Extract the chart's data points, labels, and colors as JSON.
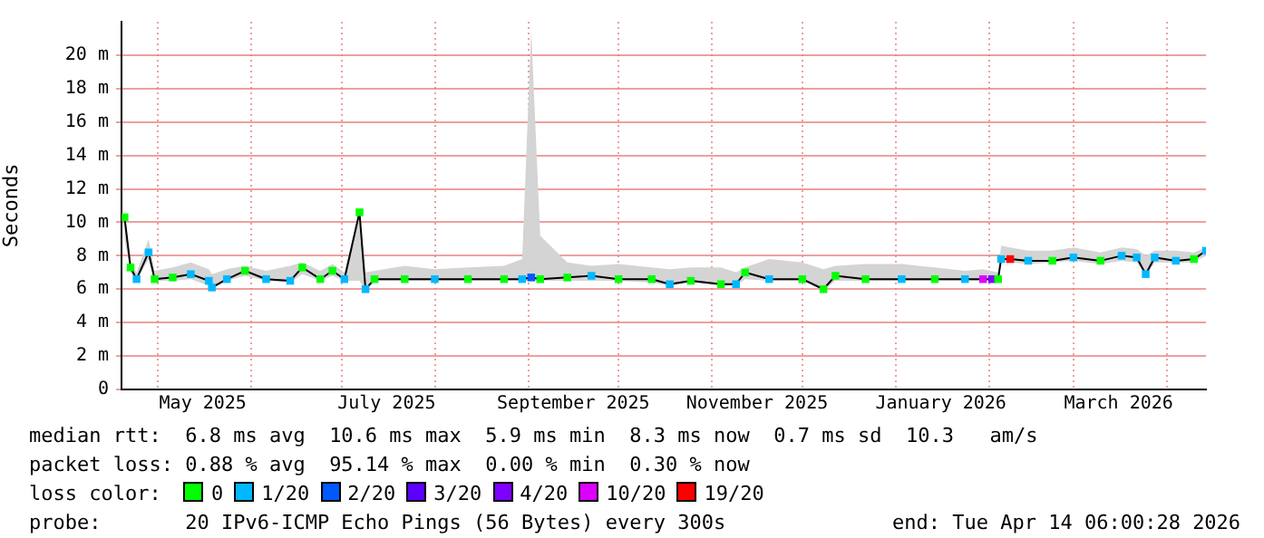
{
  "chart_data": {
    "type": "line",
    "ylabel": "Seconds",
    "legend_title": "loss color:",
    "legend": "bottom",
    "grid": true,
    "marker": "square",
    "xlim": [
      "2025-04-19",
      "2026-04-14"
    ],
    "xticks": [
      {
        "value": "2025-05-01",
        "label": null
      },
      {
        "value": "2025-05-16",
        "label": "May 2025"
      },
      {
        "value": "2025-06-01",
        "label": null
      },
      {
        "value": "2025-07-01",
        "label": null
      },
      {
        "value": "2025-07-16",
        "label": "July 2025"
      },
      {
        "value": "2025-08-01",
        "label": null
      },
      {
        "value": "2025-09-01",
        "label": null
      },
      {
        "value": "2025-09-16",
        "label": "September 2025"
      },
      {
        "value": "2025-10-01",
        "label": null
      },
      {
        "value": "2025-11-01",
        "label": null
      },
      {
        "value": "2025-11-16",
        "label": "November 2025"
      },
      {
        "value": "2025-12-01",
        "label": null
      },
      {
        "value": "2026-01-01",
        "label": null
      },
      {
        "value": "2026-01-16",
        "label": "January 2026"
      },
      {
        "value": "2026-02-01",
        "label": null
      },
      {
        "value": "2026-03-01",
        "label": null
      },
      {
        "value": "2026-03-16",
        "label": "March 2026"
      },
      {
        "value": "2026-04-01",
        "label": null
      }
    ],
    "ylim": [
      0,
      22
    ],
    "yticks": [
      {
        "value": 0,
        "label": "0"
      },
      {
        "value": 2,
        "label": "2 m"
      },
      {
        "value": 4,
        "label": "4 m"
      },
      {
        "value": 6,
        "label": "6 m"
      },
      {
        "value": 8,
        "label": "8 m"
      },
      {
        "value": 10,
        "label": "10 m"
      },
      {
        "value": 12,
        "label": "12 m"
      },
      {
        "value": 14,
        "label": "14 m"
      },
      {
        "value": 16,
        "label": "16 m"
      },
      {
        "value": 18,
        "label": "18 m"
      },
      {
        "value": 20,
        "label": "20 m"
      }
    ],
    "annotations": [
      "median rtt:  6.8 ms avg  10.6 ms max  5.9 ms min  8.3 ms now  0.7 ms sd  10.3   am/s",
      "packet loss: 0.88 % avg  95.14 % max  0.00 % min  0.30 % now",
      "probe:       20 IPv6-ICMP Echo Pings (56 Bytes) every 300s",
      "end: Tue Apr 14 06:00:28 2026"
    ],
    "x": [
      "2025-04-20",
      "2025-04-22",
      "2025-04-24",
      "2025-04-28",
      "2025-04-30",
      "2025-05-06",
      "2025-05-12",
      "2025-05-18",
      "2025-05-19",
      "2025-05-24",
      "2025-05-30",
      "2025-06-06",
      "2025-06-14",
      "2025-06-18",
      "2025-06-24",
      "2025-06-28",
      "2025-07-02",
      "2025-07-07",
      "2025-07-09",
      "2025-07-12",
      "2025-07-22",
      "2025-08-01",
      "2025-08-12",
      "2025-08-24",
      "2025-08-30",
      "2025-09-02",
      "2025-09-05",
      "2025-09-14",
      "2025-09-22",
      "2025-10-01",
      "2025-10-12",
      "2025-10-18",
      "2025-10-25",
      "2025-11-04",
      "2025-11-09",
      "2025-11-12",
      "2025-11-20",
      "2025-12-01",
      "2025-12-08",
      "2025-12-12",
      "2025-12-22",
      "2026-01-03",
      "2026-01-14",
      "2026-01-24",
      "2026-01-30",
      "2026-02-04",
      "2026-02-05",
      "2026-02-08",
      "2026-02-14",
      "2026-02-22",
      "2026-03-01",
      "2026-03-10",
      "2026-03-17",
      "2026-03-22",
      "2026-03-25",
      "2026-03-28",
      "2026-04-04",
      "2026-04-10",
      "2026-04-14"
    ],
    "series": [
      {
        "color": "#000000",
        "marker": "none",
        "values": [
          10.3,
          7.3,
          6.6,
          8.2,
          6.6,
          6.7,
          6.9,
          6.5,
          6.1,
          6.6,
          7.1,
          6.6,
          6.5,
          7.3,
          6.6,
          7.1,
          6.6,
          10.6,
          6.0,
          6.6,
          6.6,
          6.6,
          6.6,
          6.6,
          6.6,
          6.7,
          6.6,
          6.7,
          6.8,
          6.6,
          6.6,
          6.3,
          6.5,
          6.3,
          6.3,
          7.0,
          6.6,
          6.6,
          6.0,
          6.8,
          6.6,
          6.6,
          6.6,
          6.6,
          6.6,
          6.6,
          7.8,
          7.8,
          7.7,
          7.7,
          7.9,
          7.7,
          8.0,
          7.9,
          6.9,
          7.9,
          7.7,
          7.8,
          8.3
        ],
        "lower": [
          9.0,
          7.0,
          6.5,
          7.8,
          6.5,
          6.5,
          6.6,
          6.2,
          6.0,
          6.5,
          6.8,
          6.5,
          6.4,
          6.9,
          6.5,
          6.8,
          6.5,
          6.5,
          5.9,
          6.5,
          6.5,
          6.5,
          6.5,
          6.5,
          6.5,
          6.5,
          6.5,
          6.5,
          6.5,
          6.5,
          6.4,
          6.2,
          6.4,
          6.2,
          6.2,
          6.6,
          6.5,
          6.5,
          5.9,
          6.5,
          6.5,
          6.5,
          6.5,
          6.5,
          6.5,
          6.5,
          7.6,
          7.6,
          7.5,
          7.6,
          7.7,
          7.5,
          7.7,
          7.6,
          6.8,
          7.6,
          7.6,
          7.6,
          8.0
        ],
        "upper": [
          10.6,
          7.6,
          7.0,
          9.0,
          7.1,
          7.3,
          7.6,
          7.2,
          6.9,
          7.2,
          7.4,
          7.1,
          7.4,
          7.6,
          7.1,
          7.5,
          7.0,
          10.7,
          7.0,
          7.1,
          7.4,
          7.2,
          7.3,
          7.4,
          7.8,
          21.5,
          9.2,
          7.6,
          7.4,
          7.5,
          7.3,
          7.2,
          7.3,
          7.3,
          7.0,
          7.3,
          7.8,
          7.6,
          7.2,
          7.4,
          7.5,
          7.5,
          7.3,
          7.1,
          7.2,
          7.0,
          8.6,
          8.5,
          8.3,
          8.3,
          8.5,
          8.2,
          8.5,
          8.4,
          8.0,
          8.3,
          8.3,
          8.2,
          8.5
        ]
      },
      {
        "name": "0",
        "type": "scatter",
        "color": "#00ff00",
        "x": [
          "2025-04-20",
          "2025-04-22",
          "2025-04-30",
          "2025-05-06",
          "2025-05-30",
          "2025-06-18",
          "2025-06-24",
          "2025-06-28",
          "2025-07-07",
          "2025-07-12",
          "2025-07-22",
          "2025-08-12",
          "2025-08-24",
          "2025-09-05",
          "2025-09-14",
          "2025-10-01",
          "2025-10-12",
          "2025-10-25",
          "2025-11-04",
          "2025-11-12",
          "2025-12-01",
          "2025-12-08",
          "2025-12-12",
          "2025-12-22",
          "2026-01-14",
          "2026-02-04",
          "2026-02-22",
          "2026-03-10",
          "2026-04-10"
        ],
        "values": [
          10.3,
          7.3,
          6.6,
          6.7,
          7.1,
          7.3,
          6.6,
          7.1,
          10.6,
          6.6,
          6.6,
          6.6,
          6.6,
          6.6,
          6.7,
          6.6,
          6.6,
          6.5,
          6.3,
          7.0,
          6.6,
          6.0,
          6.8,
          6.6,
          6.6,
          6.6,
          7.7,
          7.7,
          7.8
        ]
      },
      {
        "name": "1/20",
        "type": "scatter",
        "color": "#00b8ff",
        "x": [
          "2025-04-24",
          "2025-04-28",
          "2025-05-12",
          "2025-05-18",
          "2025-05-19",
          "2025-05-24",
          "2025-06-06",
          "2025-06-14",
          "2025-07-02",
          "2025-07-09",
          "2025-08-01",
          "2025-08-30",
          "2025-09-22",
          "2025-10-18",
          "2025-11-09",
          "2025-11-20",
          "2026-01-03",
          "2026-01-24",
          "2026-02-05",
          "2026-02-14",
          "2026-03-01",
          "2026-03-17",
          "2026-03-22",
          "2026-03-25",
          "2026-03-28",
          "2026-04-04",
          "2026-04-14"
        ],
        "values": [
          6.6,
          8.2,
          6.9,
          6.5,
          6.1,
          6.6,
          6.6,
          6.5,
          6.6,
          6.0,
          6.6,
          6.6,
          6.8,
          6.3,
          6.3,
          6.6,
          6.6,
          6.6,
          7.8,
          7.7,
          7.9,
          8.0,
          7.9,
          6.9,
          7.9,
          7.7,
          8.3
        ]
      },
      {
        "name": "2/20",
        "type": "scatter",
        "color": "#0059ff",
        "x": [
          "2025-09-02"
        ],
        "values": [
          6.7
        ]
      },
      {
        "name": "3/20",
        "type": "scatter",
        "color": "#5e00ff",
        "values": [
          null,
          null,
          null,
          null,
          null,
          null,
          null,
          null,
          null,
          null,
          null,
          null,
          null,
          null,
          null,
          null,
          null,
          null,
          null,
          null,
          null,
          null,
          null,
          null,
          null,
          null,
          null,
          null,
          null,
          null,
          null,
          null,
          null,
          null,
          null,
          null,
          null,
          null,
          null,
          null,
          null,
          null,
          null,
          null,
          null,
          null,
          null,
          null,
          null,
          null,
          null,
          null,
          null,
          null,
          null,
          null,
          null,
          null,
          null
        ]
      },
      {
        "name": "4/20",
        "type": "scatter",
        "color": "#7e00ff",
        "x": [
          "2026-02-02"
        ],
        "values": [
          6.6
        ]
      },
      {
        "name": "10/20",
        "type": "scatter",
        "color": "#dd00ff",
        "x": [
          "2026-01-30"
        ],
        "values": [
          6.6
        ]
      },
      {
        "name": "19/20",
        "type": "scatter",
        "color": "#ff0000",
        "x": [
          "2026-02-08"
        ],
        "values": [
          7.8
        ]
      }
    ]
  }
}
